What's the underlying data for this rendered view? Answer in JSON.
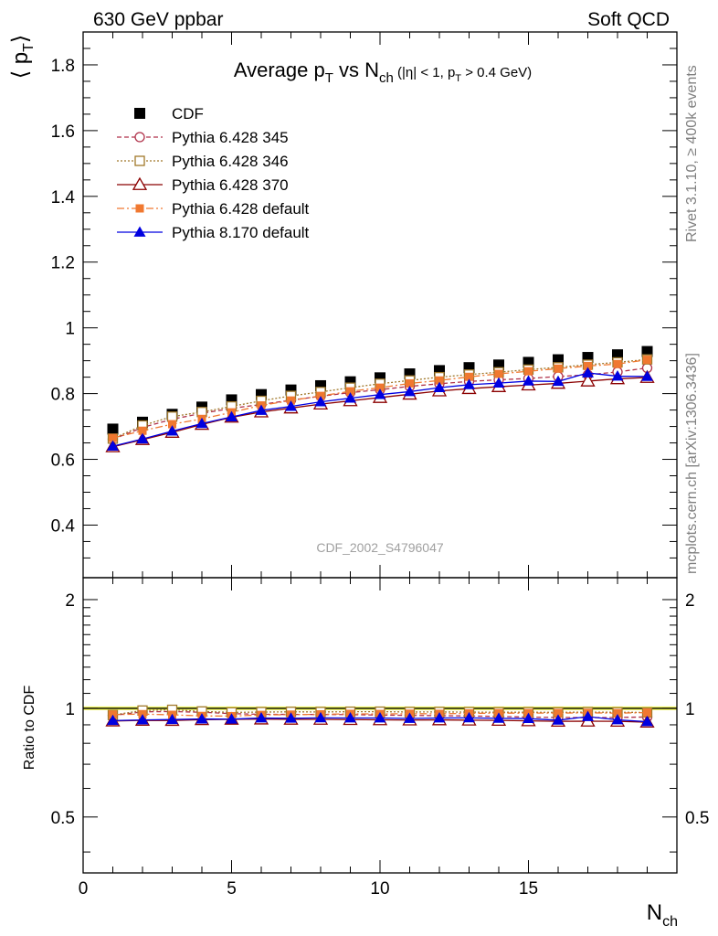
{
  "header": {
    "left_label": "630 GeV ppbar",
    "right_label": "Soft QCD"
  },
  "side_labels": {
    "rivet": "Rivet 3.1.10, ≥ 400k events",
    "mcplots": "mcplots.cern.ch [arXiv:1306.3436]"
  },
  "chart_data": {
    "type": "line",
    "title": {
      "main": "Average p",
      "main_sub": "T",
      "mid": " vs N",
      "mid_sub": "ch",
      "cut_a": " (|η| < 1, p",
      "cut_sub": "T",
      "cut_b": " > 0.4 GeV)"
    },
    "ylabel": "⟨ p",
    "ylabel_sub": "T",
    "ylabel_close": "⟩",
    "xlabel": "N",
    "xlabel_sub": "ch",
    "ratio_ylabel": "Ratio to CDF",
    "watermark": "CDF_2002_S4796047",
    "xlim": [
      0,
      20
    ],
    "ylim": [
      0.24,
      1.9
    ],
    "ratio_ylim": [
      0.35,
      2.3
    ],
    "ratio_log": true,
    "x_ticks": [
      "0",
      "5",
      "10",
      "15"
    ],
    "y_ticks": [
      "0.4",
      "0.6",
      "0.8",
      "1",
      "1.2",
      "1.4",
      "1.6",
      "1.8"
    ],
    "ratio_ticks": [
      "0.5",
      "1",
      "2"
    ],
    "legend_position": "top-left",
    "x": [
      1,
      2,
      3,
      4,
      5,
      6,
      7,
      8,
      9,
      10,
      11,
      12,
      13,
      14,
      15,
      16,
      17,
      18,
      19
    ],
    "series": [
      {
        "name": "CDF",
        "color": "#000000",
        "marker": "square-filled",
        "line": "none",
        "values": [
          0.692,
          0.713,
          0.737,
          0.759,
          0.781,
          0.797,
          0.811,
          0.824,
          0.836,
          0.848,
          0.86,
          0.87,
          0.879,
          0.887,
          0.895,
          0.903,
          0.91,
          0.918,
          0.928
        ]
      },
      {
        "name": "Pythia 6.428 345",
        "color": "#b0324a",
        "marker": "circle-open",
        "line": "dashed",
        "values": [
          0.661,
          0.697,
          0.722,
          0.74,
          0.755,
          0.767,
          0.78,
          0.792,
          0.803,
          0.812,
          0.822,
          0.83,
          0.837,
          0.842,
          0.846,
          0.852,
          0.857,
          0.866,
          0.878
        ]
      },
      {
        "name": "Pythia 6.428 346",
        "color": "#a0782a",
        "marker": "square-open",
        "line": "dotted",
        "values": [
          0.663,
          0.703,
          0.73,
          0.744,
          0.761,
          0.778,
          0.793,
          0.805,
          0.818,
          0.83,
          0.84,
          0.85,
          0.858,
          0.865,
          0.873,
          0.88,
          0.888,
          0.895,
          0.904
        ]
      },
      {
        "name": "Pythia 6.428 370",
        "color": "#8b0000",
        "marker": "triangle-open",
        "line": "solid",
        "values": [
          0.638,
          0.66,
          0.682,
          0.706,
          0.728,
          0.744,
          0.756,
          0.768,
          0.778,
          0.788,
          0.798,
          0.808,
          0.815,
          0.821,
          0.826,
          0.831,
          0.838,
          0.845,
          0.849
        ]
      },
      {
        "name": "Pythia 6.428 default",
        "color": "#f07830",
        "marker": "square-filled-small",
        "line": "dashdot",
        "values": [
          0.665,
          0.687,
          0.707,
          0.723,
          0.743,
          0.764,
          0.779,
          0.793,
          0.807,
          0.818,
          0.831,
          0.84,
          0.851,
          0.86,
          0.868,
          0.876,
          0.884,
          0.89,
          0.903
        ]
      },
      {
        "name": "Pythia 8.170 default",
        "color": "#0000e0",
        "marker": "triangle-filled",
        "line": "solid",
        "values": [
          0.64,
          0.662,
          0.686,
          0.709,
          0.729,
          0.749,
          0.761,
          0.775,
          0.786,
          0.797,
          0.806,
          0.818,
          0.827,
          0.832,
          0.838,
          0.837,
          0.863,
          0.853,
          0.852
        ]
      }
    ]
  }
}
